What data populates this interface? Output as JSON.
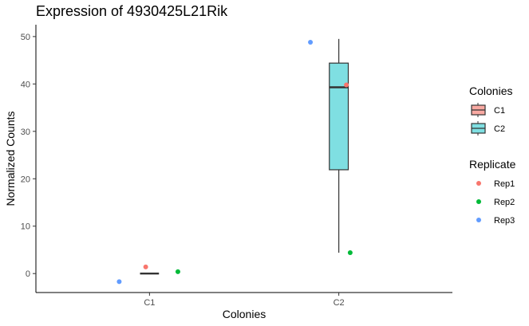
{
  "chart_data": {
    "type": "box",
    "title": "Expression of 4930425L21Rik",
    "xlabel": "Colonies",
    "ylabel": "Normalized Counts",
    "categories": [
      "C1",
      "C2"
    ],
    "ylim": [
      -4,
      52.5
    ],
    "yticks": [
      0,
      10,
      20,
      30,
      40,
      50
    ],
    "grid": false,
    "boxes": [
      {
        "category": "C1",
        "min": 0,
        "q1": 0,
        "median": 0,
        "q3": 0,
        "max": 0,
        "fill": "#F8A9A2"
      },
      {
        "category": "C2",
        "min": 4.4,
        "q1": 21.9,
        "median": 39.3,
        "q3": 44.4,
        "max": 49.5,
        "fill": "#7FDFE2"
      }
    ],
    "points": [
      {
        "category": "C1",
        "replicate": "Rep1",
        "y": 1.4,
        "jitter": -0.02
      },
      {
        "category": "C1",
        "replicate": "Rep2",
        "y": 0.4,
        "jitter": 0.15
      },
      {
        "category": "C1",
        "replicate": "Rep3",
        "y": -1.7,
        "jitter": -0.16
      },
      {
        "category": "C2",
        "replicate": "Rep1",
        "y": 39.8,
        "jitter": 0.04
      },
      {
        "category": "C2",
        "replicate": "Rep2",
        "y": 4.4,
        "jitter": 0.06
      },
      {
        "category": "C2",
        "replicate": "Rep3",
        "y": 48.8,
        "jitter": -0.15
      }
    ],
    "legends": [
      {
        "title": "Colonies",
        "kind": "box",
        "items": [
          {
            "label": "C1",
            "color": "#F8A9A2"
          },
          {
            "label": "C2",
            "color": "#7FDFE2"
          }
        ]
      },
      {
        "title": "Replicate",
        "kind": "point",
        "items": [
          {
            "label": "Rep1",
            "color": "#F8766D"
          },
          {
            "label": "Rep2",
            "color": "#00BA38"
          },
          {
            "label": "Rep3",
            "color": "#619CFF"
          }
        ]
      }
    ],
    "legend_position": "right"
  }
}
